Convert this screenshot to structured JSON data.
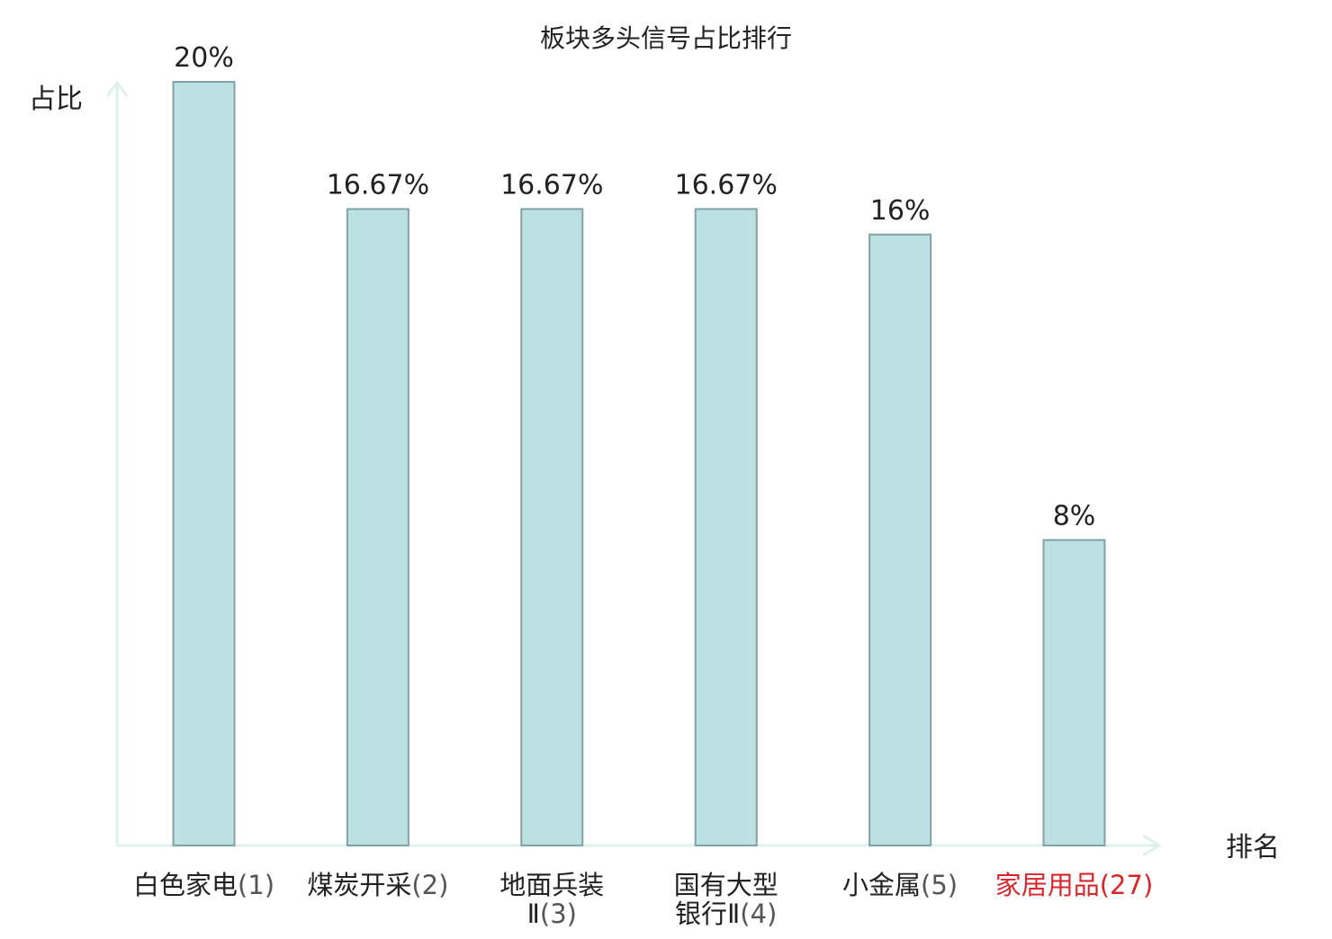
{
  "chart_data": {
    "type": "bar",
    "title": "板块多头信号占比排行",
    "xlabel": "排名",
    "ylabel": "占比",
    "ylim": [
      0,
      20
    ],
    "grid": false,
    "categories": [
      {
        "name_lines": [
          "白色家电"
        ],
        "rank": "(1)",
        "highlight": false
      },
      {
        "name_lines": [
          "煤炭开采"
        ],
        "rank": "(2)",
        "highlight": false
      },
      {
        "name_lines": [
          "地面兵装",
          "Ⅱ"
        ],
        "rank": "(3)",
        "highlight": false
      },
      {
        "name_lines": [
          "国有大型",
          "银行Ⅱ"
        ],
        "rank": "(4)",
        "highlight": false
      },
      {
        "name_lines": [
          "小金属"
        ],
        "rank": "(5)",
        "highlight": false
      },
      {
        "name_lines": [
          "家居用品"
        ],
        "rank": "(27)",
        "highlight": true
      }
    ],
    "values": [
      20,
      16.67,
      16.67,
      16.67,
      16,
      8
    ],
    "value_labels": [
      "20%",
      "16.67%",
      "16.67%",
      "16.67%",
      "16%",
      "8%"
    ],
    "colors": {
      "bar_fill": "#bde0e3",
      "bar_stroke": "#7fa3a6",
      "axis": "#dff1ef",
      "text": "#222222",
      "rank_text": "#555555",
      "highlight": "#d9262b"
    }
  }
}
